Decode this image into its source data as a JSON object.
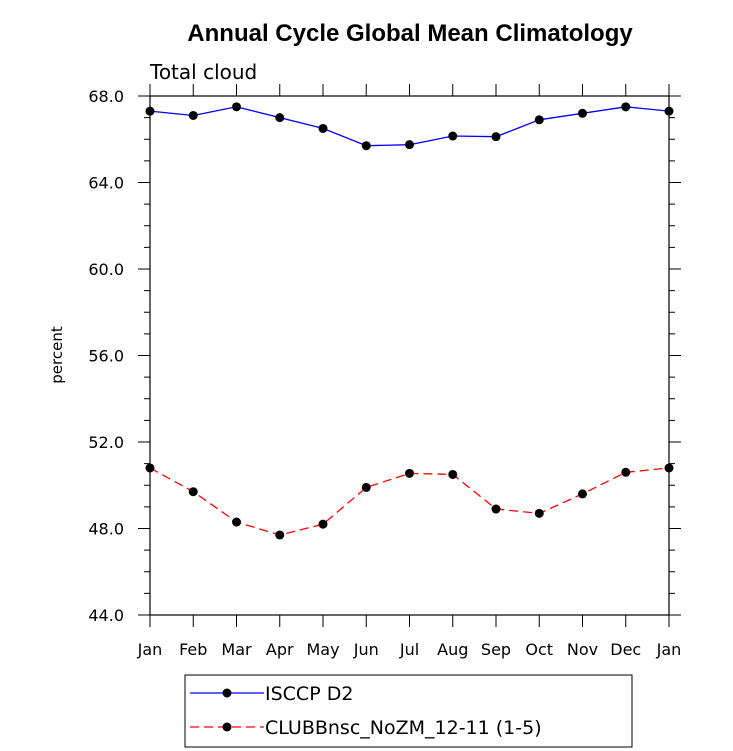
{
  "chart_data": {
    "type": "line",
    "title": "Annual Cycle Global Mean Climatology",
    "subtitle": "Total cloud",
    "xlabel": "",
    "ylabel": "percent",
    "categories": [
      "Jan",
      "Feb",
      "Mar",
      "Apr",
      "May",
      "Jun",
      "Jul",
      "Aug",
      "Sep",
      "Oct",
      "Nov",
      "Dec",
      "Jan"
    ],
    "ylim": [
      44.0,
      68.0
    ],
    "yticks": [
      "44.0",
      "48.0",
      "52.0",
      "56.0",
      "60.0",
      "64.0",
      "68.0"
    ],
    "grid": false,
    "legend_position": "bottom",
    "series": [
      {
        "name": "ISCCP D2",
        "color": "#0000ff",
        "line_style": "solid",
        "marker": "filled-circle",
        "values": [
          67.3,
          67.1,
          67.5,
          67.0,
          66.5,
          65.7,
          65.75,
          66.15,
          66.12,
          66.9,
          67.2,
          67.5,
          67.3
        ]
      },
      {
        "name": "CLUBBnsc_NoZM_12-11 (1-5)",
        "color": "#ff0000",
        "line_style": "dashed",
        "marker": "filled-circle",
        "values": [
          50.8,
          49.7,
          48.3,
          47.7,
          48.2,
          49.9,
          50.55,
          50.5,
          48.9,
          48.7,
          49.6,
          50.6,
          50.8
        ]
      }
    ]
  }
}
